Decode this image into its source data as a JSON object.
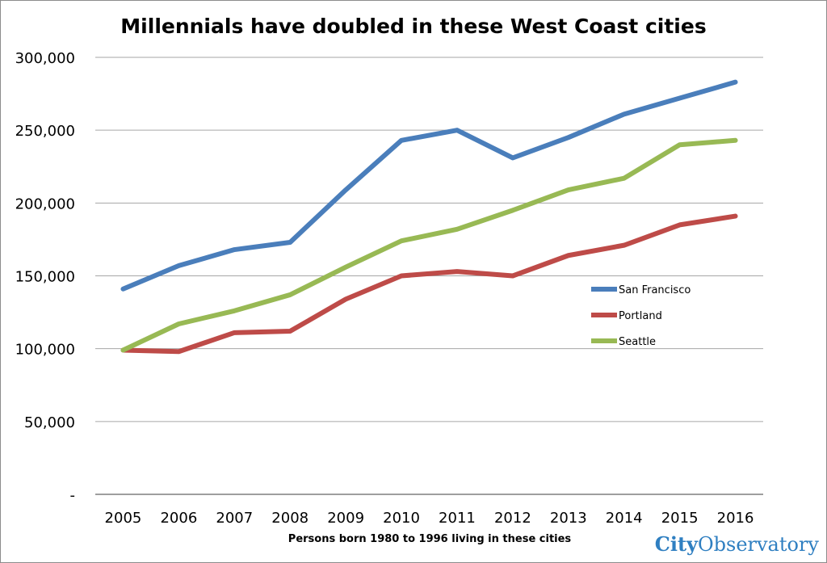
{
  "chart_data": {
    "type": "line",
    "title": "Millennials have doubled in these West Coast cities",
    "xlabel": "Persons born 1980 to 1996 living in these cities",
    "ylabel": "",
    "categories": [
      "2005",
      "2006",
      "2007",
      "2008",
      "2009",
      "2010",
      "2011",
      "2012",
      "2013",
      "2014",
      "2015",
      "2016"
    ],
    "ylim": [
      0,
      300000
    ],
    "yticks": [
      0,
      50000,
      100000,
      150000,
      200000,
      250000,
      300000
    ],
    "ytick_labels": [
      "-",
      "50,000",
      "100,000",
      "150,000",
      "200,000",
      "250,000",
      "300,000"
    ],
    "grid": true,
    "legend_position": "right-center",
    "series": [
      {
        "name": "San Francisco",
        "color": "#4a7ebb",
        "values": [
          141000,
          157000,
          168000,
          173000,
          209000,
          243000,
          250000,
          231000,
          245000,
          261000,
          272000,
          283000
        ]
      },
      {
        "name": "Portland",
        "color": "#be4b48",
        "values": [
          99000,
          98000,
          111000,
          112000,
          134000,
          150000,
          153000,
          150000,
          164000,
          171000,
          185000,
          191000
        ]
      },
      {
        "name": "Seattle",
        "color": "#98b954",
        "values": [
          99000,
          117000,
          126000,
          137000,
          156000,
          174000,
          182000,
          195000,
          209000,
          217000,
          240000,
          243000
        ]
      }
    ]
  },
  "branding": {
    "city": "City",
    "observatory": "Observatory"
  }
}
